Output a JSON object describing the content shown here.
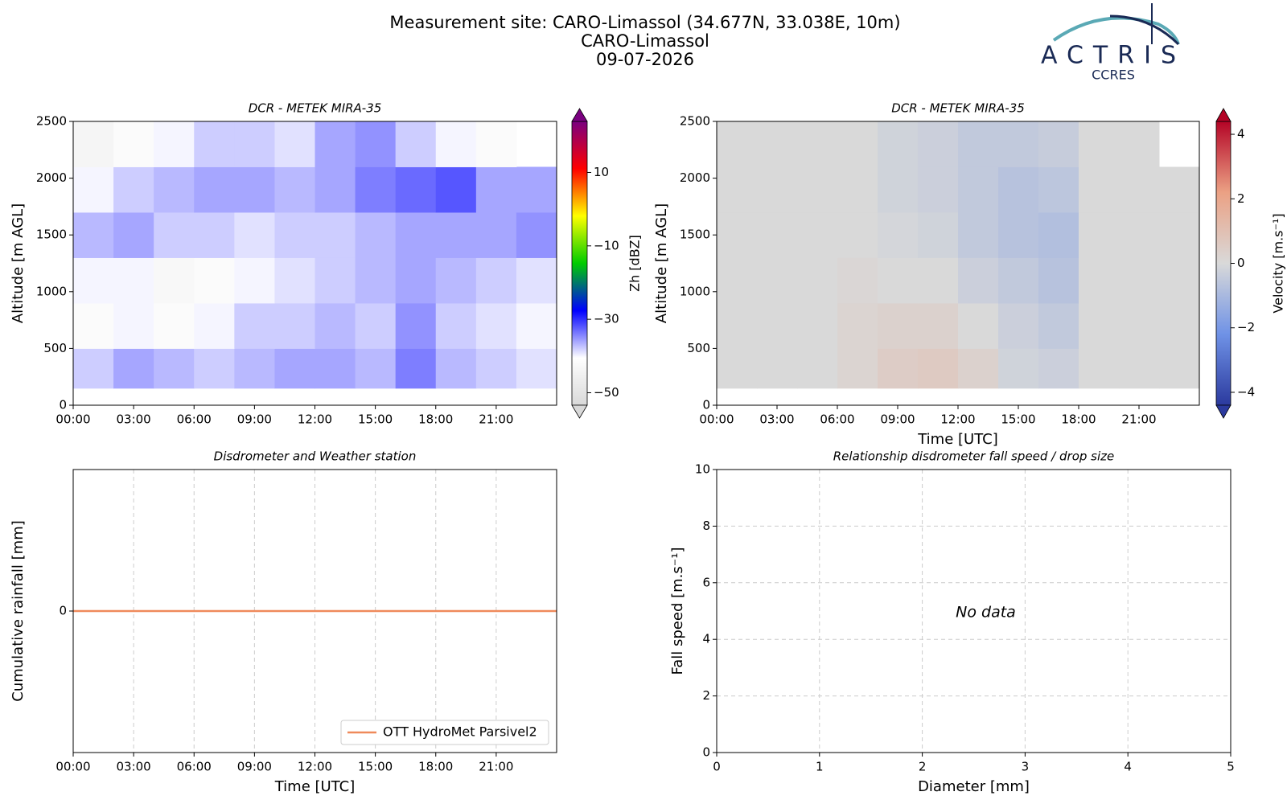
{
  "header": {
    "title_lines": [
      "Measurement site: CARO-Limassol (34.677N, 33.038E, 10m)",
      "CARO-Limassol",
      "09-07-2026"
    ],
    "logo": "ACTRIS",
    "logo_subtitle": "CCRES"
  },
  "chart_data": [
    {
      "type": "heatmap",
      "title": "DCR - METEK MIRA-35",
      "ylabel": "Altitude [m AGL]",
      "xlim": [
        0,
        24
      ],
      "xticks": [
        {
          "value": 0,
          "label": "00:00"
        },
        {
          "value": 3,
          "label": "03:00"
        },
        {
          "value": 6,
          "label": "06:00"
        },
        {
          "value": 9,
          "label": "09:00"
        },
        {
          "value": 12,
          "label": "12:00"
        },
        {
          "value": 15,
          "label": "15:00"
        },
        {
          "value": 18,
          "label": "18:00"
        },
        {
          "value": 21,
          "label": "21:00"
        }
      ],
      "ylim": [
        0,
        2500
      ],
      "yticks": [
        0,
        500,
        1000,
        1500,
        2000,
        2500
      ],
      "x_bins": [
        0,
        2,
        4,
        6,
        8,
        10,
        12,
        14,
        16,
        18,
        20,
        22,
        24
      ],
      "y_bins": [
        150,
        500,
        900,
        1300,
        1700,
        2100,
        2500
      ],
      "values": [
        [
          -38,
          -36,
          -37,
          -38,
          -37,
          -36,
          -36,
          -37,
          -34,
          -37,
          -38,
          -39
        ],
        [
          -42,
          -40,
          -42,
          -40,
          -38,
          -38,
          -37,
          -38,
          -35,
          -38,
          -39,
          -40
        ],
        [
          -40,
          -40,
          -43,
          -42,
          -40,
          -39,
          -38,
          -37,
          -36,
          -37,
          -38,
          -39
        ],
        [
          -37,
          -36,
          -38,
          -38,
          -39,
          -38,
          -38,
          -37,
          -36,
          -36,
          -36,
          -35
        ],
        [
          -40,
          -38,
          -37,
          -36,
          -36,
          -37,
          -36,
          -34,
          -33,
          -32,
          -36,
          -36
        ],
        [
          -44,
          -42,
          -40,
          -38,
          -38,
          -39,
          -36,
          -35,
          -38,
          -40,
          -42,
          null
        ]
      ],
      "colorbar": {
        "label": "Zh [dBZ]",
        "zlim": [
          -53.4,
          23.9
        ],
        "zticks": [
          {
            "value": -50,
            "label": "−50"
          },
          {
            "value": -30,
            "label": "−30"
          },
          {
            "value": -10,
            "label": "−10"
          },
          10
        ],
        "colors": [
          "#d9d9d9",
          "#ffffff",
          "#0000ff",
          "#00cc00",
          "#ffff00",
          "#ff0000",
          "#7a0080"
        ]
      },
      "grid": false
    },
    {
      "type": "heatmap",
      "title": "DCR - METEK MIRA-35",
      "xlabel": "Time [UTC]",
      "ylabel": "Altitude [m AGL]",
      "xlim": [
        0,
        24
      ],
      "xticks": [
        {
          "value": 0,
          "label": "00:00"
        },
        {
          "value": 3,
          "label": "03:00"
        },
        {
          "value": 6,
          "label": "06:00"
        },
        {
          "value": 9,
          "label": "09:00"
        },
        {
          "value": 12,
          "label": "12:00"
        },
        {
          "value": 15,
          "label": "15:00"
        },
        {
          "value": 18,
          "label": "18:00"
        },
        {
          "value": 21,
          "label": "21:00"
        }
      ],
      "ylim": [
        0,
        2500
      ],
      "yticks": [
        0,
        500,
        1000,
        1500,
        2000,
        2500
      ],
      "x_bins": [
        0,
        2,
        4,
        6,
        8,
        10,
        12,
        14,
        16,
        18,
        20,
        22,
        24
      ],
      "y_bins": [
        150,
        500,
        900,
        1300,
        1700,
        2100,
        2500
      ],
      "values": [
        [
          0,
          0,
          0,
          0.2,
          0.5,
          0.6,
          0.3,
          -0.2,
          -0.3,
          0,
          0,
          0
        ],
        [
          0,
          0,
          0,
          0.2,
          0.3,
          0.3,
          0,
          -0.3,
          -0.5,
          0,
          0,
          0
        ],
        [
          0,
          0,
          0,
          0.1,
          0,
          0,
          -0.3,
          -0.5,
          -0.7,
          0,
          0,
          0
        ],
        [
          0,
          0,
          0,
          0,
          -0.1,
          -0.2,
          -0.5,
          -0.7,
          -0.8,
          0,
          0,
          0
        ],
        [
          0,
          0,
          0,
          0,
          -0.2,
          -0.3,
          -0.5,
          -0.7,
          -0.6,
          0,
          0,
          0
        ],
        [
          0,
          0,
          0,
          0,
          -0.2,
          -0.3,
          -0.5,
          -0.5,
          -0.4,
          0,
          0,
          null
        ]
      ],
      "colorbar": {
        "label": "Velocity [m.s⁻¹]",
        "zlim": [
          -4.4,
          4.4
        ],
        "zticks": [
          {
            "value": -4,
            "label": "−4"
          },
          {
            "value": -2,
            "label": "−2"
          },
          0,
          2,
          4
        ],
        "colors": [
          "#2b3a9e",
          "#6f92e6",
          "#d9d9d9",
          "#eba184",
          "#b40426"
        ]
      },
      "grid": false
    },
    {
      "type": "line",
      "title": "Disdrometer and Weather station",
      "xlabel": "Time [UTC]",
      "ylabel": "Cumulative rainfall [mm]",
      "xlim": [
        0,
        24
      ],
      "xticks": [
        {
          "value": 0,
          "label": "00:00"
        },
        {
          "value": 3,
          "label": "03:00"
        },
        {
          "value": 6,
          "label": "06:00"
        },
        {
          "value": 9,
          "label": "09:00"
        },
        {
          "value": 12,
          "label": "12:00"
        },
        {
          "value": 15,
          "label": "15:00"
        },
        {
          "value": 18,
          "label": "18:00"
        },
        {
          "value": 21,
          "label": "21:00"
        }
      ],
      "ylim": [
        -1,
        1
      ],
      "yticks": [
        0
      ],
      "x": [
        0,
        24
      ],
      "series": [
        {
          "name": "OTT HydroMet Parsivel2",
          "color": "#ef8a5b",
          "values": [
            0,
            0
          ]
        }
      ],
      "legend": "lower right",
      "grid": true
    },
    {
      "type": "scatter",
      "title": "Relationship disdrometer fall speed / drop size",
      "xlabel": "Diameter [mm]",
      "ylabel": "Fall speed [m.s⁻¹]",
      "xlim": [
        0,
        5
      ],
      "xticks": [
        0,
        1,
        2,
        3,
        4,
        5
      ],
      "ylim": [
        0,
        10
      ],
      "yticks": [
        0,
        2,
        4,
        6,
        8,
        10
      ],
      "x": [],
      "values": [],
      "annotation": "No data",
      "grid": true
    }
  ]
}
